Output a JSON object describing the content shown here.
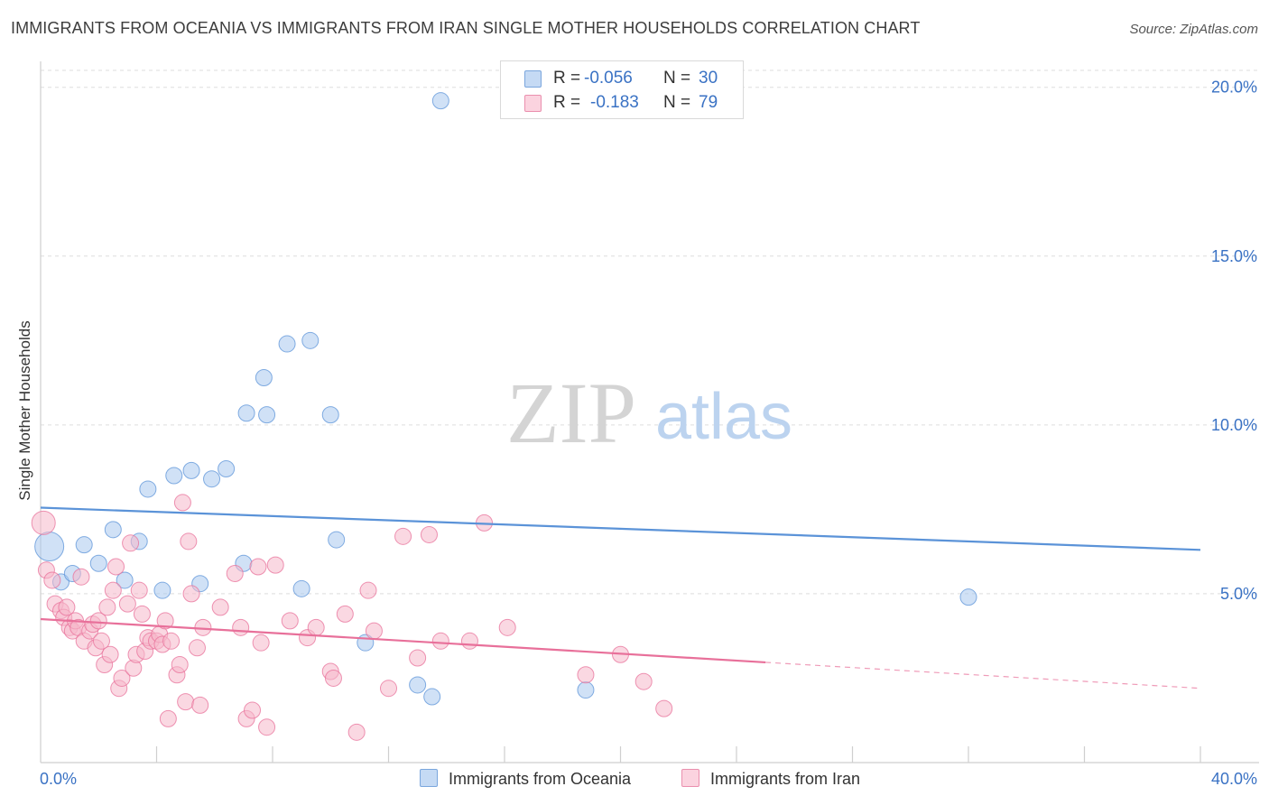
{
  "title": "IMMIGRANTS FROM OCEANIA VS IMMIGRANTS FROM IRAN SINGLE MOTHER HOUSEHOLDS CORRELATION CHART",
  "source": "Source: ZipAtlas.com",
  "watermark": {
    "zip": "ZIP",
    "atlas": "atlas"
  },
  "legend_top": {
    "rows": [
      {
        "r_label": "R =",
        "r_value": "-0.056",
        "n_label": "N =",
        "n_value": "30",
        "color": "#a9c8ef"
      },
      {
        "r_label": "R =",
        "r_value": "-0.183",
        "n_label": "N =",
        "n_value": "79",
        "color": "#f6b8ca"
      }
    ]
  },
  "chart_data": {
    "type": "scatter",
    "title": "IMMIGRANTS FROM OCEANIA VS IMMIGRANTS FROM IRAN SINGLE MOTHER HOUSEHOLDS CORRELATION CHART",
    "xlabel": "",
    "ylabel": "Single Mother Households",
    "xlim": [
      0,
      40
    ],
    "ylim": [
      0,
      20.5
    ],
    "x_tick_labels": [
      "0.0%",
      "40.0%"
    ],
    "y_ticks": [
      5,
      10,
      15,
      20
    ],
    "y_tick_labels": [
      "5.0%",
      "10.0%",
      "15.0%",
      "20.0%"
    ],
    "grid": "horizontal dashed",
    "legend_position": "bottom",
    "series": [
      {
        "name": "Immigrants from Oceania",
        "color": "#5b93d8",
        "fill": "#a9c8ef",
        "r": -0.056,
        "n": 30,
        "trend": {
          "x0": 0,
          "y0": 7.55,
          "x1": 40,
          "y1": 6.3,
          "dashed_from": null
        },
        "points": [
          [
            0.3,
            6.4
          ],
          [
            0.7,
            5.35
          ],
          [
            1.1,
            5.6
          ],
          [
            1.5,
            6.45
          ],
          [
            2.0,
            5.9
          ],
          [
            2.5,
            6.9
          ],
          [
            2.9,
            5.4
          ],
          [
            3.4,
            6.55
          ],
          [
            3.7,
            8.1
          ],
          [
            4.2,
            5.1
          ],
          [
            4.6,
            8.5
          ],
          [
            5.2,
            8.65
          ],
          [
            5.5,
            5.3
          ],
          [
            5.9,
            8.4
          ],
          [
            6.4,
            8.7
          ],
          [
            7.0,
            5.9
          ],
          [
            7.1,
            10.35
          ],
          [
            7.8,
            10.3
          ],
          [
            7.7,
            11.4
          ],
          [
            8.5,
            12.4
          ],
          [
            9.3,
            12.5
          ],
          [
            9.0,
            5.15
          ],
          [
            10.0,
            10.3
          ],
          [
            10.2,
            6.6
          ],
          [
            11.2,
            3.55
          ],
          [
            13.0,
            2.3
          ],
          [
            13.5,
            1.95
          ],
          [
            13.8,
            19.6
          ],
          [
            18.8,
            2.15
          ],
          [
            32.0,
            4.9
          ]
        ]
      },
      {
        "name": "Immigrants from Iran",
        "color": "#e8709a",
        "fill": "#f6b8ca",
        "r": -0.183,
        "n": 79,
        "trend": {
          "x0": 0,
          "y0": 4.25,
          "x1": 40,
          "y1": 2.2,
          "dashed_from": 25
        },
        "points": [
          [
            0.1,
            7.1
          ],
          [
            0.2,
            5.7
          ],
          [
            0.4,
            5.4
          ],
          [
            0.5,
            4.7
          ],
          [
            0.7,
            4.5
          ],
          [
            0.8,
            4.3
          ],
          [
            0.9,
            4.6
          ],
          [
            1.0,
            4.0
          ],
          [
            1.1,
            3.9
          ],
          [
            1.2,
            4.2
          ],
          [
            1.3,
            4.0
          ],
          [
            1.5,
            3.6
          ],
          [
            1.4,
            5.5
          ],
          [
            1.7,
            3.9
          ],
          [
            1.8,
            4.1
          ],
          [
            1.9,
            3.4
          ],
          [
            2.0,
            4.2
          ],
          [
            2.1,
            3.6
          ],
          [
            2.2,
            2.9
          ],
          [
            2.3,
            4.6
          ],
          [
            2.4,
            3.2
          ],
          [
            2.5,
            5.1
          ],
          [
            2.6,
            5.8
          ],
          [
            2.7,
            2.2
          ],
          [
            2.8,
            2.5
          ],
          [
            3.0,
            4.7
          ],
          [
            3.1,
            6.5
          ],
          [
            3.2,
            2.8
          ],
          [
            3.4,
            5.1
          ],
          [
            3.3,
            3.2
          ],
          [
            3.5,
            4.4
          ],
          [
            3.6,
            3.3
          ],
          [
            3.7,
            3.7
          ],
          [
            3.8,
            3.6
          ],
          [
            4.0,
            3.6
          ],
          [
            4.1,
            3.8
          ],
          [
            4.2,
            3.5
          ],
          [
            4.3,
            4.2
          ],
          [
            4.4,
            1.3
          ],
          [
            4.5,
            3.6
          ],
          [
            4.7,
            2.6
          ],
          [
            4.8,
            2.9
          ],
          [
            4.9,
            7.7
          ],
          [
            5.0,
            1.8
          ],
          [
            5.1,
            6.55
          ],
          [
            5.2,
            5.0
          ],
          [
            5.4,
            3.4
          ],
          [
            5.5,
            1.7
          ],
          [
            5.6,
            4.0
          ],
          [
            6.2,
            4.6
          ],
          [
            6.7,
            5.6
          ],
          [
            6.9,
            4.0
          ],
          [
            7.1,
            1.3
          ],
          [
            7.3,
            1.55
          ],
          [
            7.5,
            5.8
          ],
          [
            7.6,
            3.55
          ],
          [
            7.8,
            1.05
          ],
          [
            8.1,
            5.85
          ],
          [
            8.6,
            4.2
          ],
          [
            9.2,
            3.7
          ],
          [
            9.5,
            4.0
          ],
          [
            10.0,
            2.7
          ],
          [
            10.1,
            2.5
          ],
          [
            10.5,
            4.4
          ],
          [
            10.9,
            0.9
          ],
          [
            11.3,
            5.1
          ],
          [
            11.5,
            3.9
          ],
          [
            12.0,
            2.2
          ],
          [
            12.5,
            6.7
          ],
          [
            13.0,
            3.1
          ],
          [
            13.4,
            6.75
          ],
          [
            13.8,
            3.6
          ],
          [
            14.8,
            3.6
          ],
          [
            15.3,
            7.1
          ],
          [
            16.1,
            4.0
          ],
          [
            18.8,
            2.6
          ],
          [
            20.0,
            3.2
          ],
          [
            20.8,
            2.4
          ],
          [
            21.5,
            1.6
          ]
        ]
      }
    ]
  }
}
